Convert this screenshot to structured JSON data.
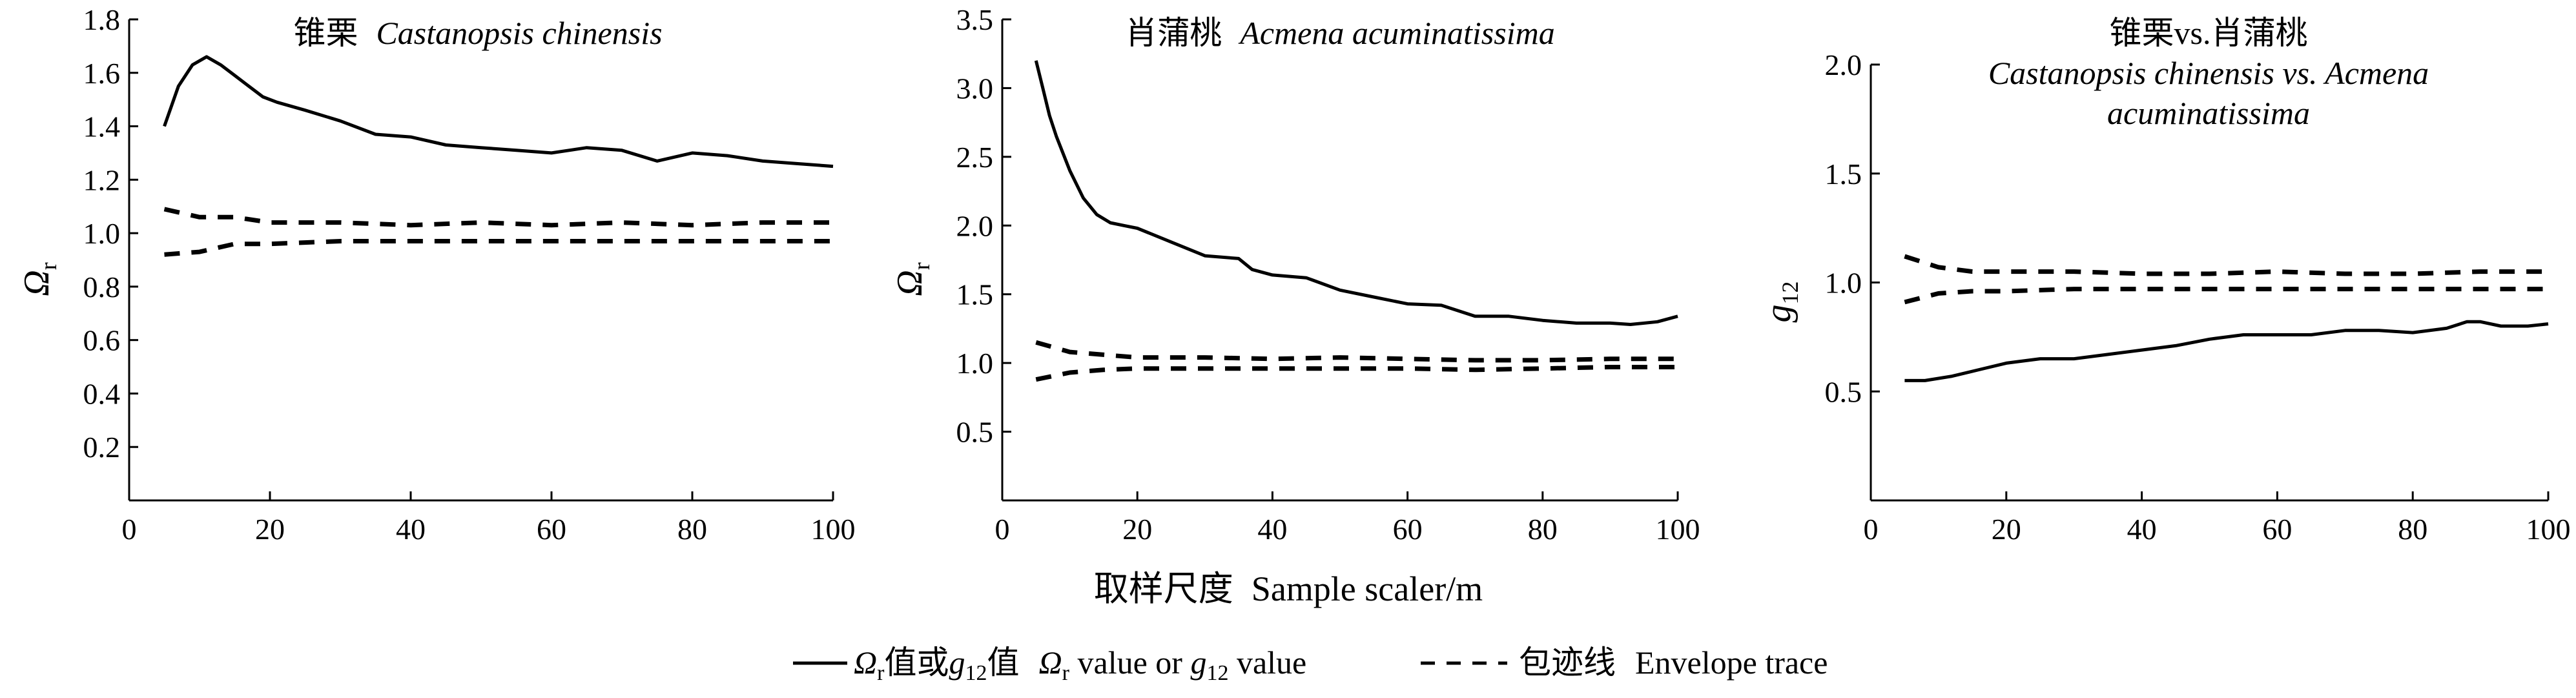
{
  "chart_data": [
    {
      "type": "line",
      "title_cn": "锥栗",
      "title_latin": "Castanopsis chinensis",
      "title_latin_line2": "",
      "ylabel": "Ω",
      "ylabel_sub": "r",
      "xlim": [
        0,
        100
      ],
      "ylim": [
        0,
        1.8
      ],
      "xticks": [
        "0",
        "20",
        "40",
        "60",
        "80",
        "100"
      ],
      "yticks": [
        "0.2",
        "0.4",
        "0.6",
        "0.8",
        "1.0",
        "1.2",
        "1.4",
        "1.6",
        "1.8"
      ],
      "series": [
        {
          "style": "solid",
          "x": [
            5,
            7,
            9,
            11,
            13,
            15,
            17,
            19,
            21,
            25,
            30,
            35,
            40,
            45,
            50,
            55,
            60,
            65,
            70,
            75,
            80,
            85,
            90,
            95,
            100
          ],
          "y": [
            1.4,
            1.55,
            1.63,
            1.66,
            1.63,
            1.59,
            1.55,
            1.51,
            1.49,
            1.46,
            1.42,
            1.37,
            1.36,
            1.33,
            1.32,
            1.31,
            1.3,
            1.32,
            1.31,
            1.27,
            1.3,
            1.29,
            1.27,
            1.26,
            1.25
          ]
        },
        {
          "style": "dashed",
          "x": [
            5,
            10,
            15,
            20,
            30,
            40,
            50,
            60,
            70,
            80,
            90,
            100
          ],
          "y": [
            1.09,
            1.06,
            1.06,
            1.04,
            1.04,
            1.03,
            1.04,
            1.03,
            1.04,
            1.03,
            1.04,
            1.04
          ]
        },
        {
          "style": "dashed",
          "x": [
            5,
            10,
            15,
            20,
            30,
            40,
            50,
            60,
            70,
            80,
            90,
            100
          ],
          "y": [
            0.92,
            0.93,
            0.96,
            0.96,
            0.97,
            0.97,
            0.97,
            0.97,
            0.97,
            0.97,
            0.97,
            0.97
          ]
        }
      ]
    },
    {
      "type": "line",
      "title_cn": "肖蒲桃",
      "title_latin": "Acmena acuminatissima",
      "title_latin_line2": "",
      "ylabel": "Ω",
      "ylabel_sub": "r",
      "xlim": [
        0,
        100
      ],
      "ylim": [
        0,
        3.5
      ],
      "xticks": [
        "0",
        "20",
        "40",
        "60",
        "80",
        "100"
      ],
      "yticks": [
        "0.5",
        "1.0",
        "1.5",
        "2.0",
        "2.5",
        "3.0",
        "3.5"
      ],
      "series": [
        {
          "style": "solid",
          "x": [
            5,
            6,
            7,
            8,
            10,
            12,
            14,
            16,
            18,
            20,
            25,
            30,
            35,
            37,
            40,
            45,
            50,
            55,
            60,
            65,
            70,
            75,
            80,
            85,
            90,
            93,
            97,
            100
          ],
          "y": [
            3.2,
            3.0,
            2.8,
            2.65,
            2.4,
            2.2,
            2.08,
            2.02,
            2.0,
            1.98,
            1.88,
            1.78,
            1.76,
            1.68,
            1.64,
            1.62,
            1.53,
            1.48,
            1.43,
            1.42,
            1.34,
            1.34,
            1.31,
            1.29,
            1.29,
            1.28,
            1.3,
            1.34
          ]
        },
        {
          "style": "dashed",
          "x": [
            5,
            10,
            15,
            20,
            30,
            40,
            50,
            60,
            70,
            80,
            90,
            100
          ],
          "y": [
            1.15,
            1.08,
            1.06,
            1.04,
            1.04,
            1.03,
            1.04,
            1.03,
            1.02,
            1.02,
            1.03,
            1.03
          ]
        },
        {
          "style": "dashed",
          "x": [
            5,
            10,
            15,
            20,
            30,
            40,
            50,
            60,
            70,
            80,
            90,
            100
          ],
          "y": [
            0.88,
            0.93,
            0.95,
            0.96,
            0.96,
            0.96,
            0.96,
            0.96,
            0.95,
            0.96,
            0.97,
            0.97
          ]
        }
      ]
    },
    {
      "type": "line",
      "title_cn": "锥栗vs.肖蒲桃",
      "title_latin": "Castanopsis chinensis vs. Acmena",
      "title_latin_line2": "acuminatissima",
      "ylabel": "g",
      "ylabel_sub": "12",
      "xlim": [
        0,
        100
      ],
      "ylim": [
        0,
        2.0
      ],
      "xticks": [
        "0",
        "20",
        "40",
        "60",
        "80",
        "100"
      ],
      "yticks": [
        "0.5",
        "1.0",
        "1.5",
        "2.0"
      ],
      "series": [
        {
          "style": "solid",
          "x": [
            5,
            8,
            12,
            16,
            20,
            25,
            30,
            35,
            40,
            45,
            50,
            55,
            60,
            65,
            70,
            75,
            80,
            85,
            88,
            90,
            93,
            97,
            100
          ],
          "y": [
            0.55,
            0.55,
            0.57,
            0.6,
            0.63,
            0.65,
            0.65,
            0.67,
            0.69,
            0.71,
            0.74,
            0.76,
            0.76,
            0.76,
            0.78,
            0.78,
            0.77,
            0.79,
            0.82,
            0.82,
            0.8,
            0.8,
            0.81
          ]
        },
        {
          "style": "dashed",
          "x": [
            5,
            10,
            15,
            20,
            30,
            40,
            50,
            60,
            70,
            80,
            90,
            100
          ],
          "y": [
            1.12,
            1.07,
            1.05,
            1.05,
            1.05,
            1.04,
            1.04,
            1.05,
            1.04,
            1.04,
            1.05,
            1.05
          ]
        },
        {
          "style": "dashed",
          "x": [
            5,
            10,
            15,
            20,
            30,
            40,
            50,
            60,
            70,
            80,
            90,
            100
          ],
          "y": [
            0.91,
            0.95,
            0.96,
            0.96,
            0.97,
            0.97,
            0.97,
            0.97,
            0.97,
            0.97,
            0.97,
            0.97
          ]
        }
      ]
    }
  ],
  "xlabel_cn": "取样尺度",
  "xlabel_en": "Sample scaler/m",
  "legend": {
    "solid_cn_pre": "Ω",
    "solid_cn_sub1": "r",
    "solid_cn_mid": "值或",
    "solid_cn_g": "g",
    "solid_cn_sub2": "12",
    "solid_cn_post": "值",
    "solid_en_pre": "Ω",
    "solid_en_sub1": "r",
    "solid_en_mid": " value or ",
    "solid_en_g": "g",
    "solid_en_sub2": "12",
    "solid_en_post": " value",
    "dashed_cn": "包迹线",
    "dashed_en": "Envelope trace"
  }
}
